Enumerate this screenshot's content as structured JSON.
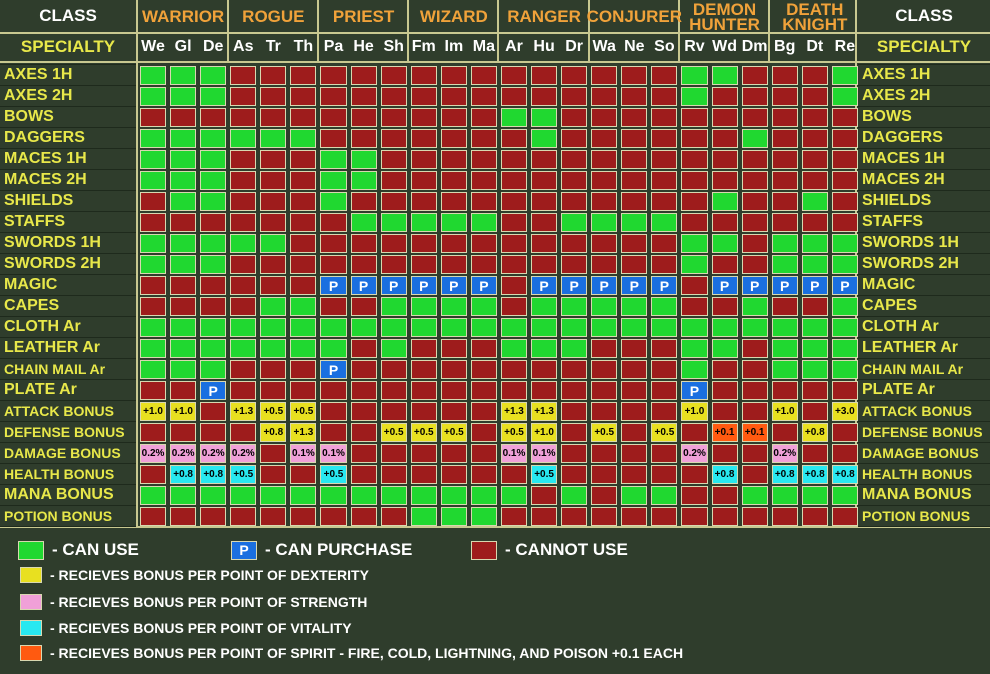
{
  "header": {
    "class_label": "CLASS",
    "specialty_label": "SPECIALTY",
    "groups": [
      {
        "name": "WARRIOR",
        "cols": 3
      },
      {
        "name": "ROGUE",
        "cols": 3
      },
      {
        "name": "PRIEST",
        "cols": 3
      },
      {
        "name": "WIZARD",
        "cols": 3
      },
      {
        "name": "RANGER",
        "cols": 3
      },
      {
        "name": "CONJURER",
        "cols": 3
      },
      {
        "name": "DEMON HUNTER",
        "cols": 3
      },
      {
        "name": "DEATH KNIGHT",
        "cols": 3
      }
    ],
    "specialties": [
      "We",
      "Gl",
      "De",
      "As",
      "Tr",
      "Th",
      "Pa",
      "He",
      "Sh",
      "Fm",
      "Im",
      "Ma",
      "Ar",
      "Hu",
      "Dr",
      "Wa",
      "Ne",
      "So",
      "Rv",
      "Wd",
      "Dm",
      "Bg",
      "Dt",
      "Re"
    ]
  },
  "rows": [
    {
      "label": "AXES 1H",
      "cells": [
        "G",
        "G",
        "G",
        "R",
        "R",
        "R",
        "R",
        "R",
        "R",
        "R",
        "R",
        "R",
        "R",
        "R",
        "R",
        "R",
        "R",
        "R",
        "G",
        "G",
        "R",
        "R",
        "R",
        "G"
      ]
    },
    {
      "label": "AXES 2H",
      "cells": [
        "G",
        "G",
        "G",
        "R",
        "R",
        "R",
        "R",
        "R",
        "R",
        "R",
        "R",
        "R",
        "R",
        "R",
        "R",
        "R",
        "R",
        "R",
        "G",
        "R",
        "R",
        "R",
        "R",
        "G"
      ]
    },
    {
      "label": "BOWS",
      "cells": [
        "R",
        "R",
        "R",
        "R",
        "R",
        "R",
        "R",
        "R",
        "R",
        "R",
        "R",
        "R",
        "G",
        "G",
        "R",
        "R",
        "R",
        "R",
        "R",
        "R",
        "R",
        "R",
        "R",
        "R"
      ]
    },
    {
      "label": "DAGGERS",
      "cells": [
        "G",
        "G",
        "G",
        "G",
        "G",
        "G",
        "R",
        "R",
        "R",
        "R",
        "R",
        "R",
        "R",
        "G",
        "R",
        "R",
        "R",
        "R",
        "R",
        "R",
        "G",
        "R",
        "R",
        "R"
      ]
    },
    {
      "label": "MACES 1H",
      "cells": [
        "G",
        "G",
        "G",
        "R",
        "R",
        "R",
        "G",
        "G",
        "R",
        "R",
        "R",
        "R",
        "R",
        "R",
        "R",
        "R",
        "R",
        "R",
        "R",
        "R",
        "R",
        "R",
        "R",
        "R"
      ]
    },
    {
      "label": "MACES 2H",
      "cells": [
        "G",
        "G",
        "G",
        "R",
        "R",
        "R",
        "G",
        "G",
        "R",
        "R",
        "R",
        "R",
        "R",
        "R",
        "R",
        "R",
        "R",
        "R",
        "R",
        "R",
        "R",
        "R",
        "R",
        "R"
      ]
    },
    {
      "label": "SHIELDS",
      "cells": [
        "R",
        "G",
        "G",
        "R",
        "R",
        "R",
        "G",
        "R",
        "R",
        "R",
        "R",
        "R",
        "R",
        "R",
        "R",
        "R",
        "R",
        "R",
        "R",
        "G",
        "R",
        "R",
        "G",
        "R"
      ]
    },
    {
      "label": "STAFFS",
      "cells": [
        "R",
        "R",
        "R",
        "R",
        "R",
        "R",
        "R",
        "G",
        "G",
        "G",
        "G",
        "G",
        "R",
        "R",
        "G",
        "G",
        "G",
        "G",
        "R",
        "R",
        "R",
        "R",
        "R",
        "R"
      ]
    },
    {
      "label": "SWORDS 1H",
      "cells": [
        "G",
        "G",
        "G",
        "G",
        "G",
        "R",
        "R",
        "R",
        "R",
        "R",
        "R",
        "R",
        "R",
        "R",
        "R",
        "R",
        "R",
        "R",
        "G",
        "G",
        "R",
        "G",
        "G",
        "G"
      ]
    },
    {
      "label": "SWORDS 2H",
      "cells": [
        "G",
        "G",
        "G",
        "R",
        "R",
        "R",
        "R",
        "R",
        "R",
        "R",
        "R",
        "R",
        "R",
        "R",
        "R",
        "R",
        "R",
        "R",
        "G",
        "R",
        "R",
        "G",
        "G",
        "G"
      ]
    },
    {
      "label": "MAGIC",
      "cells": [
        "R",
        "R",
        "R",
        "R",
        "R",
        "R",
        "P",
        "P",
        "P",
        "P",
        "P",
        "P",
        "R",
        "P",
        "P",
        "P",
        "P",
        "P",
        "R",
        "P",
        "P",
        "P",
        "P",
        "P"
      ]
    },
    {
      "label": "CAPES",
      "cells": [
        "R",
        "R",
        "R",
        "R",
        "G",
        "G",
        "R",
        "R",
        "G",
        "G",
        "G",
        "G",
        "R",
        "G",
        "G",
        "G",
        "G",
        "G",
        "R",
        "R",
        "G",
        "R",
        "R",
        "G"
      ]
    },
    {
      "label": "CLOTH Ar",
      "cells": [
        "G",
        "G",
        "G",
        "G",
        "G",
        "G",
        "G",
        "G",
        "G",
        "G",
        "G",
        "G",
        "G",
        "G",
        "G",
        "G",
        "G",
        "G",
        "G",
        "G",
        "G",
        "G",
        "G",
        "G"
      ]
    },
    {
      "label": "LEATHER Ar",
      "cells": [
        "G",
        "G",
        "G",
        "G",
        "G",
        "G",
        "G",
        "R",
        "G",
        "R",
        "R",
        "R",
        "G",
        "G",
        "G",
        "R",
        "R",
        "R",
        "G",
        "G",
        "R",
        "G",
        "G",
        "G"
      ]
    },
    {
      "label": "CHAIN MAIL Ar",
      "cells": [
        "G",
        "G",
        "G",
        "R",
        "R",
        "R",
        "P",
        "R",
        "R",
        "R",
        "R",
        "R",
        "R",
        "R",
        "R",
        "R",
        "R",
        "R",
        "G",
        "R",
        "R",
        "G",
        "G",
        "G"
      ]
    },
    {
      "label": "PLATE Ar",
      "cells": [
        "R",
        "R",
        "P",
        "R",
        "R",
        "R",
        "R",
        "R",
        "R",
        "R",
        "R",
        "R",
        "R",
        "R",
        "R",
        "R",
        "R",
        "R",
        "P",
        "R",
        "R",
        "R",
        "R",
        "R"
      ]
    },
    {
      "label": "ATTACK BONUS",
      "cells": [
        "Y:+1.0",
        "Y:+1.0",
        "R",
        "Y:+1.3",
        "Y:+0.5",
        "Y:+0.5",
        "R",
        "R",
        "R",
        "R",
        "R",
        "R",
        "Y:+1.3",
        "Y:+1.3",
        "R",
        "R",
        "R",
        "R",
        "Y:+1.0",
        "R",
        "R",
        "Y:+1.0",
        "R",
        "Y:+3.0"
      ]
    },
    {
      "label": "DEFENSE BONUS",
      "cells": [
        "R",
        "R",
        "R",
        "R",
        "Y:+0.8",
        "Y:+1.3",
        "R",
        "R",
        "Y:+0.5",
        "Y:+0.5",
        "Y:+0.5",
        "R",
        "Y:+0.5",
        "Y:+1.0",
        "R",
        "Y:+0.5",
        "R",
        "Y:+0.5",
        "R",
        "O:+0.1",
        "O:+0.1",
        "R",
        "Y:+0.8",
        "R"
      ]
    },
    {
      "label": "DAMAGE BONUS",
      "cells": [
        "K:0.2%",
        "K:0.2%",
        "K:0.2%",
        "K:0.2%",
        "R",
        "K:0.1%",
        "K:0.1%",
        "R",
        "R",
        "R",
        "R",
        "R",
        "K:0.1%",
        "K:0.1%",
        "R",
        "R",
        "R",
        "R",
        "K:0.2%",
        "R",
        "R",
        "K:0.2%",
        "R",
        "R"
      ]
    },
    {
      "label": "HEALTH BONUS",
      "cells": [
        "R",
        "C:+0.8",
        "C:+0.8",
        "C:+0.5",
        "R",
        "R",
        "C:+0.5",
        "R",
        "R",
        "R",
        "R",
        "R",
        "R",
        "C:+0.5",
        "R",
        "R",
        "R",
        "R",
        "R",
        "C:+0.8",
        "R",
        "C:+0.8",
        "C:+0.8",
        "C:+0.8"
      ]
    },
    {
      "label": "MANA BONUS",
      "cells": [
        "G",
        "G",
        "G",
        "G",
        "G",
        "G",
        "G",
        "G",
        "G",
        "G",
        "G",
        "G",
        "G",
        "R",
        "G",
        "R",
        "G",
        "G",
        "R",
        "R",
        "G",
        "G",
        "G",
        "G"
      ]
    },
    {
      "label": "POTION BONUS",
      "cells": [
        "R",
        "R",
        "R",
        "R",
        "R",
        "R",
        "R",
        "R",
        "R",
        "G",
        "G",
        "G",
        "R",
        "R",
        "R",
        "R",
        "R",
        "R",
        "R",
        "R",
        "R",
        "R",
        "R",
        "R"
      ]
    }
  ],
  "legend": {
    "can_use": "- CAN USE",
    "can_purchase": "- CAN PURCHASE",
    "purchase_glyph": "P",
    "cannot_use": "- CANNOT USE",
    "dex": "- RECIEVES BONUS PER POINT OF DEXTERITY",
    "str": "- RECIEVES BONUS PER POINT OF STRENGTH",
    "vit": "- RECIEVES BONUS PER POINT OF VITALITY",
    "spirit": "- RECIEVES BONUS PER POINT OF SPIRIT  - FIRE, COLD, LIGHTNING, AND POISON +0.1 EACH"
  },
  "colors": {
    "background": "#2f3d2c",
    "can_use": "#20d830",
    "cannot_use": "#9e1c1c",
    "can_purchase": "#1a6fe0",
    "dexterity": "#e8e020",
    "strength": "#f0a0d8",
    "vitality": "#28e8f0",
    "spirit": "#ff5a10",
    "class_header": "#f0a23a",
    "label_text": "#e8e84a"
  }
}
